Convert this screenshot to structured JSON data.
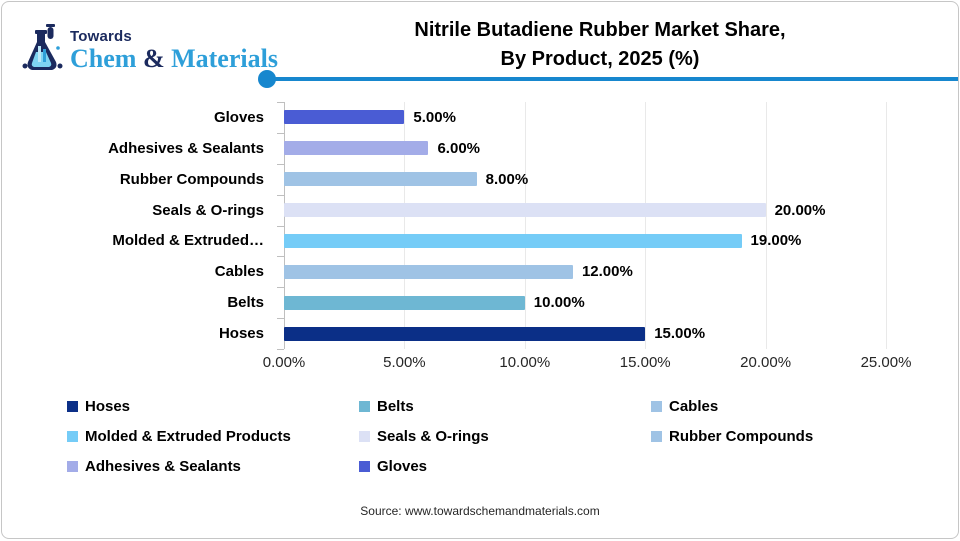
{
  "logo": {
    "towards": "Towards",
    "chem": "Chem",
    "amp": " & ",
    "materials": "Materials"
  },
  "title": {
    "line1": "Nitrile Butadiene Rubber Market Share,",
    "line2": "By Product, 2025 (%)"
  },
  "chart_data": {
    "type": "bar",
    "orientation": "horizontal",
    "title": "Nitrile Butadiene Rubber Market Share, By Product, 2025 (%)",
    "categories": [
      "Gloves",
      "Adhesives & Sealants",
      "Rubber Compounds",
      "Seals & O-rings",
      "Molded & Extruded Products",
      "Cables",
      "Belts",
      "Hoses"
    ],
    "display_labels": [
      "Gloves",
      "Adhesives & Sealants",
      "Rubber Compounds",
      "Seals & O-rings",
      "Molded & Extruded…",
      "Cables",
      "Belts",
      "Hoses"
    ],
    "values": [
      5,
      6,
      8,
      20,
      19,
      12,
      10,
      15
    ],
    "value_labels": [
      "5.00%",
      "6.00%",
      "8.00%",
      "20.00%",
      "19.00%",
      "12.00%",
      "10.00%",
      "15.00%"
    ],
    "bar_colors": [
      "#4a5cd4",
      "#a3ace8",
      "#9fc3e5",
      "#dce1f5",
      "#75ccf7",
      "#9fc3e5",
      "#6eb7d3",
      "#0b2f87"
    ],
    "xlim": [
      0,
      25
    ],
    "x_ticks": [
      {
        "value": 0,
        "label": "0.00%"
      },
      {
        "value": 5,
        "label": "5.00%"
      },
      {
        "value": 10,
        "label": "10.00%"
      },
      {
        "value": 15,
        "label": "15.00%"
      },
      {
        "value": 20,
        "label": "20.00%"
      },
      {
        "value": 25,
        "label": "25.00%"
      }
    ],
    "grid": true,
    "legend_position": "bottom"
  },
  "legend": {
    "items": [
      {
        "label": "Hoses",
        "color": "#0b2f87"
      },
      {
        "label": "Belts",
        "color": "#6eb7d3"
      },
      {
        "label": "Cables",
        "color": "#9fc3e5"
      },
      {
        "label": "Molded & Extruded Products",
        "color": "#75ccf7"
      },
      {
        "label": "Seals & O-rings",
        "color": "#dce1f5"
      },
      {
        "label": "Rubber Compounds",
        "color": "#9fc3e5"
      },
      {
        "label": "Adhesives & Sealants",
        "color": "#a3ace8"
      },
      {
        "label": "Gloves",
        "color": "#4a5cd4"
      }
    ]
  },
  "source": {
    "text": "Source: www.towardschemandmaterials.com"
  },
  "colors": {
    "divider": "#1787ce",
    "logo_navy": "#1b2a5e",
    "logo_lightblue": "#2e9fd9",
    "gridline": "#e9e9e9",
    "axis": "#bfbfbf"
  }
}
